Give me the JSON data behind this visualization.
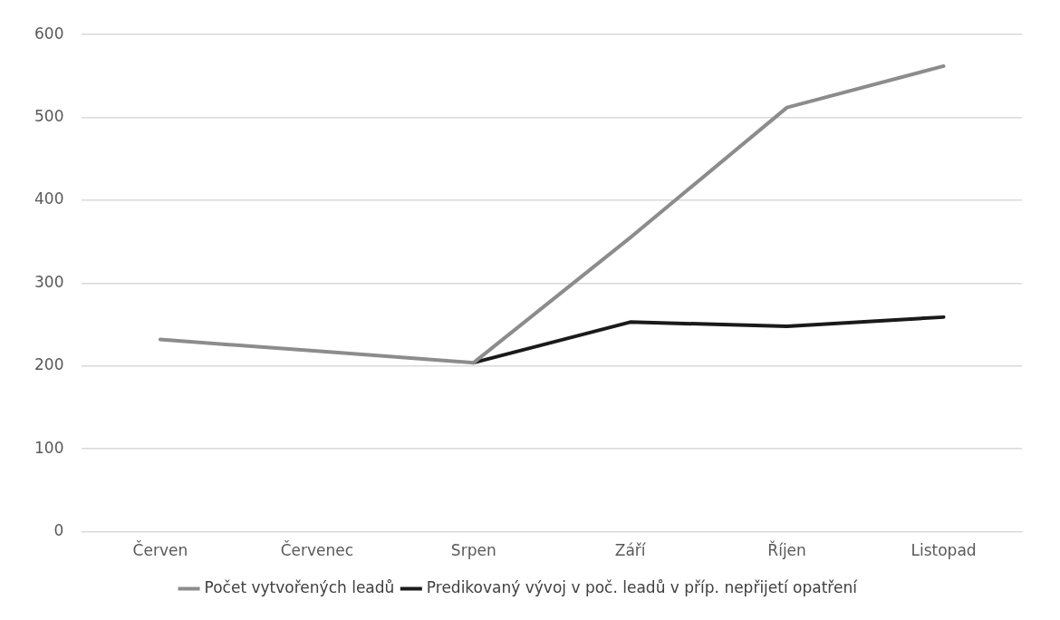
{
  "chart_data": {
    "type": "line",
    "categories": [
      "Červen",
      "Červenec",
      "Srpen",
      "Září",
      "Říjen",
      "Listopad"
    ],
    "series": [
      {
        "name": "Počet vytvořených leadů",
        "color": "#8c8c8c",
        "values": [
          232,
          218,
          204,
          355,
          512,
          562
        ]
      },
      {
        "name": "Predikovaný vývoj v poč. leadů v příp. nepřijetí opatření",
        "color": "#1a1a1a",
        "values": [
          null,
          null,
          204,
          253,
          248,
          259
        ]
      }
    ],
    "ylim": [
      0,
      600
    ],
    "yticks": [
      0,
      100,
      200,
      300,
      400,
      500,
      600
    ],
    "grid": "y",
    "legend": "bottom"
  }
}
